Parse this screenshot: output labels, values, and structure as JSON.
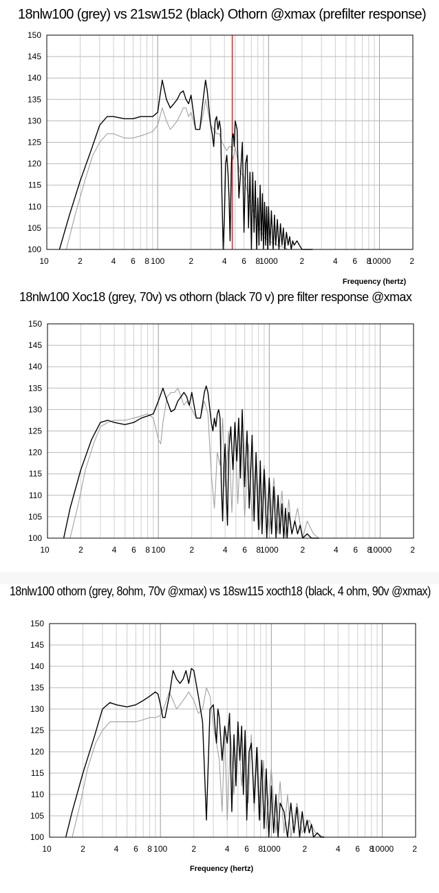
{
  "chart_data": [
    {
      "type": "line",
      "title": "18nlw100 (grey) vs 21sw152 (black) Othorn @xmax (prefilter response)",
      "xlabel": "Frequency (hertz)",
      "ylabel": "",
      "x_scale": "log",
      "xlim": [
        10,
        20000
      ],
      "ylim": [
        100,
        150
      ],
      "yticks": [
        "150",
        "145",
        "140",
        "135",
        "130",
        "125",
        "120",
        "115",
        "110",
        "105",
        "100"
      ],
      "xticks": [
        "10",
        "2",
        "4",
        "6",
        "8",
        "100",
        "2",
        "4",
        "6",
        "8",
        "1000",
        "2",
        "4",
        "6",
        "8",
        "10000",
        "2"
      ],
      "grid": true,
      "marker_line_hz": 470,
      "marker_color": "#d40000",
      "series": [
        {
          "color": "#000000",
          "x": [
            13,
            16,
            20,
            25,
            30,
            35,
            40,
            50,
            60,
            70,
            80,
            90,
            100,
            105,
            110,
            120,
            130,
            140,
            150,
            160,
            170,
            180,
            190,
            200,
            220,
            240,
            260,
            270,
            280,
            300,
            310,
            320,
            330,
            340,
            350,
            360,
            370,
            380,
            390,
            400,
            410,
            420,
            430,
            440,
            450,
            460,
            470,
            480,
            490,
            500,
            520,
            540,
            560,
            580,
            600,
            620,
            640,
            660,
            680,
            700,
            720,
            740,
            760,
            780,
            800,
            820,
            840,
            860,
            880,
            900,
            920,
            940,
            960,
            980,
            1000,
            1030,
            1060,
            1100,
            1130,
            1160,
            1200,
            1240,
            1280,
            1320,
            1360,
            1400,
            1450,
            1500,
            1550,
            1600,
            1650,
            1700,
            1800,
            1900,
            2000,
            2100,
            2200,
            2300,
            2400,
            2500
          ],
          "y": [
            100,
            108,
            116,
            123,
            129,
            131,
            131,
            130.5,
            130.5,
            131,
            131,
            131,
            132,
            136,
            139.5,
            135,
            133,
            134,
            135,
            136.5,
            137,
            135,
            134,
            136,
            128,
            128,
            136,
            139.5,
            137,
            129,
            127,
            124,
            130,
            131,
            128,
            130,
            128,
            112,
            100,
            108,
            120,
            122,
            118,
            112,
            102,
            118,
            126,
            127,
            124,
            130,
            128,
            112,
            118,
            125,
            104,
            120,
            122,
            105,
            118,
            100,
            118,
            104,
            116,
            100,
            112,
            101,
            115,
            102,
            113,
            100,
            111,
            101,
            110,
            100,
            110,
            101,
            109,
            100,
            108,
            101,
            107,
            100,
            106,
            101,
            105,
            100,
            104,
            101,
            103,
            100,
            102,
            101,
            102,
            101,
            100,
            100,
            100,
            100,
            100,
            100
          ]
        },
        {
          "color": "#a0a0a0",
          "x": [
            15,
            18,
            22,
            26,
            30,
            35,
            40,
            50,
            60,
            70,
            80,
            90,
            100,
            110,
            120,
            130,
            140,
            150,
            160,
            170,
            180,
            190,
            200,
            220,
            240,
            260,
            270,
            280,
            300,
            320,
            340,
            360,
            380,
            400,
            420,
            440,
            460,
            480,
            500,
            550,
            600,
            650,
            700,
            800,
            900,
            1000,
            1200,
            1500,
            2000,
            2500
          ],
          "y": [
            100,
            108,
            116,
            122,
            125,
            127,
            127,
            126,
            126,
            126.5,
            127,
            127.5,
            129,
            133,
            130,
            128,
            129,
            130,
            131.5,
            133,
            133,
            131,
            132,
            128,
            128,
            132,
            135,
            133,
            129,
            128,
            127,
            127,
            125,
            124,
            123,
            124,
            124,
            121,
            124,
            118,
            117,
            113,
            110,
            106,
            103,
            102,
            101,
            100,
            100,
            100
          ]
        }
      ]
    },
    {
      "type": "line",
      "title": "18nlw100 Xoc18 (grey, 70v) vs othorn (black 70 v) pre filter response @xmax",
      "xlabel": "",
      "ylabel": "",
      "x_scale": "log",
      "xlim": [
        10,
        20000
      ],
      "ylim": [
        100,
        150
      ],
      "yticks": [
        "150",
        "145",
        "140",
        "135",
        "130",
        "125",
        "120",
        "115",
        "110",
        "105",
        "100"
      ],
      "xticks": [
        "10",
        "2",
        "4",
        "6",
        "8",
        "100",
        "2",
        "4",
        "6",
        "8",
        "1000",
        "2",
        "4",
        "6",
        "8",
        "10000",
        "2"
      ],
      "grid": true,
      "series": [
        {
          "color": "#000000",
          "x": [
            14,
            16,
            20,
            25,
            30,
            35,
            40,
            50,
            60,
            70,
            80,
            90,
            100,
            110,
            120,
            130,
            140,
            150,
            160,
            170,
            180,
            190,
            200,
            220,
            240,
            260,
            270,
            280,
            300,
            310,
            320,
            330,
            340,
            350,
            360,
            370,
            380,
            390,
            400,
            410,
            420,
            430,
            450,
            470,
            490,
            510,
            530,
            550,
            570,
            600,
            630,
            660,
            700,
            730,
            760,
            800,
            830,
            860,
            900,
            950,
            1000,
            1050,
            1100,
            1150,
            1200,
            1250,
            1300,
            1350,
            1400,
            1450,
            1500,
            1600,
            1700,
            1800,
            1900,
            2000,
            2200,
            2400,
            2600,
            2800
          ],
          "y": [
            100,
            107,
            116,
            123,
            127,
            127.5,
            127,
            126.5,
            127,
            128,
            128.5,
            129,
            132,
            135,
            132,
            129.5,
            130,
            132,
            133,
            134,
            133,
            131,
            134,
            128,
            128,
            134,
            135.5,
            134,
            127,
            125,
            128,
            126,
            129,
            130,
            128,
            112,
            104,
            117,
            122,
            110,
            103,
            120,
            126,
            116,
            127,
            118,
            128,
            114,
            130,
            112,
            125,
            107,
            124,
            104,
            120,
            102,
            118,
            101,
            116,
            100,
            114,
            101,
            112,
            100,
            110,
            101,
            108,
            100,
            107,
            100,
            106,
            101,
            104,
            101,
            103,
            100,
            101,
            100,
            100,
            100
          ]
        },
        {
          "color": "#a0a0a0",
          "x": [
            16,
            19,
            22,
            26,
            30,
            35,
            40,
            50,
            60,
            70,
            80,
            90,
            100,
            105,
            110,
            120,
            130,
            140,
            150,
            160,
            170,
            180,
            200,
            220,
            240,
            260,
            280,
            300,
            320,
            340,
            360,
            380,
            400,
            430,
            460,
            490,
            520,
            560,
            600,
            650,
            700,
            760,
            820,
            900,
            1000,
            1100,
            1200,
            1300,
            1400,
            1500,
            1600,
            1800,
            2000,
            2200,
            2500,
            2800,
            3000
          ],
          "y": [
            100,
            108,
            116,
            122,
            126,
            127,
            127.5,
            127.5,
            128,
            128.5,
            129,
            128,
            123,
            122,
            127,
            133,
            134,
            134,
            135,
            133,
            131,
            132,
            130,
            128,
            128,
            132,
            129,
            115,
            107,
            120,
            117,
            128,
            112,
            125,
            106,
            126,
            108,
            125,
            105,
            122,
            104,
            119,
            102,
            117,
            101,
            114,
            101,
            111,
            100,
            109,
            101,
            107,
            100,
            104,
            101,
            100,
            100
          ]
        }
      ]
    },
    {
      "type": "line",
      "title": "18nlw100 othorn (grey, 8ohm, 70v @xmax) vs 18sw115 xocth18  (black, 4 ohm, 90v @xmax)",
      "xlabel": "Frequency (hertz)",
      "ylabel": "",
      "x_scale": "log",
      "xlim": [
        10,
        20000
      ],
      "ylim": [
        100,
        150
      ],
      "yticks": [
        "150",
        "145",
        "140",
        "135",
        "130",
        "125",
        "120",
        "115",
        "110",
        "105",
        "100"
      ],
      "xticks": [
        "10",
        "2",
        "4",
        "6",
        "8",
        "100",
        "2",
        "4",
        "6",
        "8",
        "1000",
        "2",
        "4",
        "6",
        "8",
        "10000",
        "2"
      ],
      "grid": true,
      "series": [
        {
          "color": "#000000",
          "x": [
            14,
            16,
            20,
            25,
            30,
            35,
            40,
            50,
            60,
            70,
            80,
            90,
            95,
            100,
            105,
            110,
            120,
            130,
            140,
            150,
            160,
            170,
            180,
            190,
            200,
            220,
            240,
            260,
            280,
            300,
            310,
            320,
            330,
            340,
            360,
            380,
            400,
            420,
            440,
            460,
            480,
            500,
            520,
            540,
            560,
            580,
            600,
            630,
            660,
            700,
            740,
            780,
            820,
            860,
            900,
            950,
            1000,
            1050,
            1100,
            1150,
            1200,
            1300,
            1400,
            1500,
            1600,
            1700,
            1800,
            1900,
            2000,
            2100,
            2200,
            2300,
            2400,
            2600,
            2800,
            3000
          ],
          "y": [
            100,
            106,
            115,
            123,
            130,
            131.5,
            131,
            130.5,
            131,
            132,
            133,
            134,
            133.5,
            131,
            128,
            128,
            133,
            139,
            137,
            136,
            137,
            139,
            136,
            139.5,
            139,
            133,
            127,
            104,
            130,
            131,
            126,
            122,
            130,
            128,
            118,
            126,
            122,
            129,
            106,
            124,
            112,
            127,
            118,
            126,
            110,
            125,
            104,
            120,
            122,
            108,
            121,
            104,
            118,
            102,
            116,
            100,
            112,
            101,
            110,
            100,
            108,
            106,
            100,
            108,
            101,
            107,
            100,
            106,
            101,
            104,
            101,
            103,
            100,
            101,
            100,
            100
          ]
        },
        {
          "color": "#a0a0a0",
          "x": [
            16,
            19,
            22,
            26,
            30,
            35,
            40,
            50,
            60,
            70,
            80,
            90,
            100,
            110,
            120,
            130,
            140,
            150,
            160,
            170,
            180,
            200,
            220,
            240,
            260,
            280,
            300,
            320,
            340,
            360,
            380,
            400,
            430,
            460,
            500,
            540,
            580,
            620,
            660,
            700,
            750,
            800,
            850,
            900,
            1000,
            1100,
            1200,
            1300,
            1400,
            1500,
            1700,
            1900,
            2200,
            2500,
            3000
          ],
          "y": [
            100,
            108,
            116,
            122,
            125,
            127,
            127,
            127,
            127,
            127.5,
            128,
            128,
            128.5,
            131,
            134,
            132,
            130,
            131,
            132,
            133,
            134,
            132,
            129,
            130,
            135,
            133,
            126,
            122,
            118,
            106,
            125,
            104,
            124,
            110,
            126,
            112,
            125,
            108,
            124,
            106,
            121,
            104,
            118,
            102,
            116,
            101,
            113,
            101,
            110,
            100,
            108,
            101,
            104,
            101,
            100
          ]
        }
      ]
    }
  ]
}
